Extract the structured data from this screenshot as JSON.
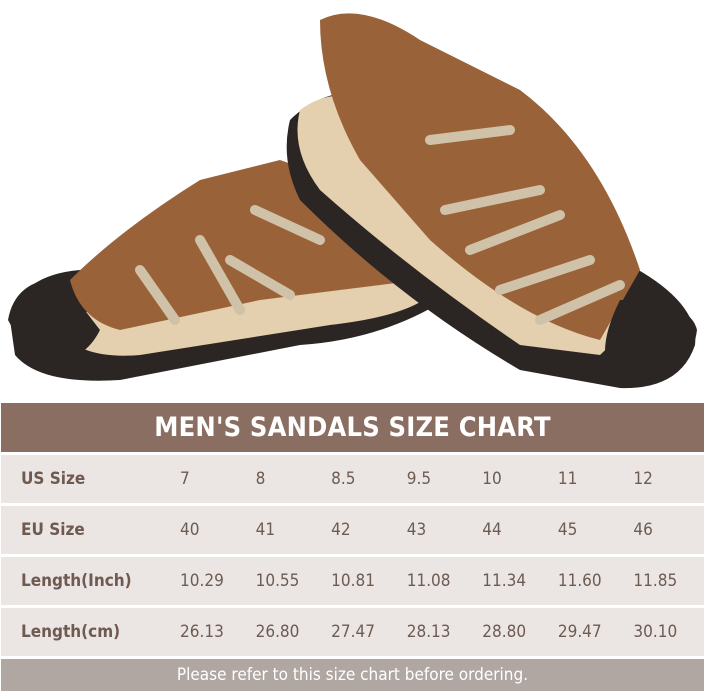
{
  "title": "MEN'S SANDALS SIZE CHART",
  "rows": [
    {
      "label": "US Size",
      "values": [
        "7",
        "8",
        "8.5",
        "9.5",
        "10",
        "11",
        "12"
      ]
    },
    {
      "label": "EU Size",
      "values": [
        "40",
        "41",
        "42",
        "43",
        "44",
        "45",
        "46"
      ]
    },
    {
      "label": "Length(Inch)",
      "values": [
        "10.29",
        "10.55",
        "10.81",
        "11.08",
        "11.34",
        "11.60",
        "11.85"
      ]
    },
    {
      "label": "Length(cm)",
      "values": [
        "26.13",
        "26.80",
        "27.47",
        "28.13",
        "28.80",
        "29.47",
        "30.10"
      ]
    }
  ],
  "footer": "Please refer to this size chart before ordering.",
  "colors": {
    "header": "#8b6e62",
    "row": "#ebe6e3",
    "footer": "#b0a7a3",
    "text": "#6e5b52",
    "leather": "#9a6238",
    "sole": "#e4cfae",
    "outsole": "#2b2623"
  }
}
